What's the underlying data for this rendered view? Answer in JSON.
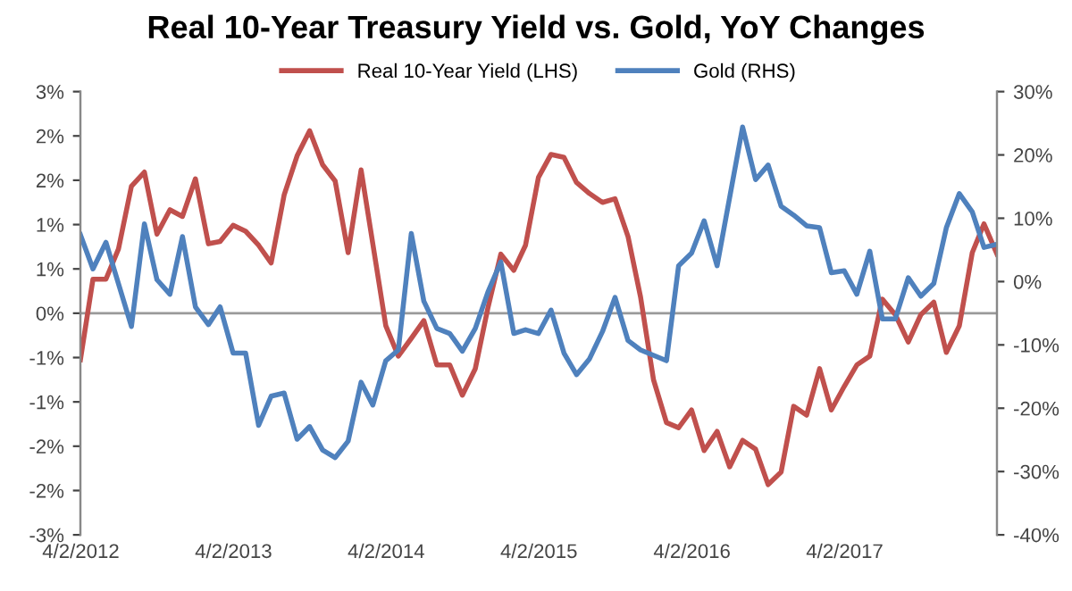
{
  "chart_data": {
    "type": "line",
    "title": "Real 10-Year Treasury Yield vs. Gold, YoY Changes",
    "series": [
      {
        "name": "Real 10-Year Yield (LHS)",
        "color": "#c0504d",
        "x": [
          "2012-04",
          "2012-05",
          "2012-06",
          "2012-07",
          "2012-08",
          "2012-09",
          "2012-10",
          "2012-11",
          "2012-12",
          "2013-01",
          "2013-02",
          "2013-03",
          "2013-04",
          "2013-05",
          "2013-06",
          "2013-07",
          "2013-08",
          "2013-09",
          "2013-10",
          "2013-11",
          "2013-12",
          "2014-01",
          "2014-02",
          "2014-03",
          "2014-04",
          "2014-05",
          "2014-06",
          "2014-07",
          "2014-08",
          "2014-09",
          "2014-10",
          "2014-11",
          "2014-12",
          "2015-01",
          "2015-02",
          "2015-03",
          "2015-04",
          "2015-05",
          "2015-06",
          "2015-07",
          "2015-08",
          "2015-09",
          "2015-10",
          "2015-11",
          "2015-12",
          "2016-01",
          "2016-02",
          "2016-03",
          "2016-04",
          "2016-05",
          "2016-06",
          "2016-07",
          "2016-08",
          "2016-09",
          "2016-10",
          "2016-11",
          "2016-12",
          "2017-01",
          "2017-02",
          "2017-03",
          "2017-04",
          "2017-05",
          "2017-06",
          "2017-07",
          "2017-08",
          "2017-09",
          "2017-10",
          "2017-11",
          "2017-12",
          "2018-01",
          "2018-02",
          "2018-03",
          "2018-04"
        ],
        "values": [
          -0.63,
          0.46,
          0.46,
          0.87,
          1.72,
          1.91,
          1.07,
          1.4,
          1.31,
          1.82,
          0.94,
          0.97,
          1.19,
          1.11,
          0.92,
          0.68,
          1.6,
          2.13,
          2.47,
          2.01,
          1.79,
          0.82,
          1.94,
          0.94,
          -0.17,
          -0.58,
          -0.34,
          -0.1,
          -0.7,
          -0.7,
          -1.11,
          -0.75,
          0.07,
          0.8,
          0.58,
          0.92,
          1.84,
          2.15,
          2.11,
          1.77,
          1.62,
          1.5,
          1.55,
          1.04,
          0.22,
          -0.9,
          -1.48,
          -1.55,
          -1.31,
          -1.86,
          -1.6,
          -2.08,
          -1.72,
          -1.84,
          -2.32,
          -2.15,
          -1.26,
          -1.38,
          -0.75,
          -1.31,
          -0.99,
          -0.7,
          -0.58,
          0.19,
          -0.02,
          -0.39,
          -0.02,
          0.15,
          -0.53,
          -0.17,
          0.82,
          1.21,
          0.8
        ]
      },
      {
        "name": "Gold (RHS)",
        "color": "#4f81bd",
        "axis": "y2",
        "x": [
          "2012-04",
          "2012-05",
          "2012-06",
          "2012-08",
          "2012-09",
          "2012-10",
          "2012-11",
          "2012-12",
          "2013-01",
          "2013-02",
          "2013-03",
          "2013-04",
          "2013-05",
          "2013-06",
          "2013-07",
          "2013-08",
          "2013-09",
          "2013-10",
          "2013-11",
          "2013-12",
          "2014-01",
          "2014-02",
          "2014-03",
          "2014-04",
          "2014-05",
          "2014-06",
          "2014-07",
          "2014-08",
          "2014-09",
          "2014-10",
          "2014-11",
          "2014-12",
          "2015-01",
          "2015-02",
          "2015-03",
          "2015-04",
          "2015-05",
          "2015-06",
          "2015-07",
          "2015-08",
          "2015-09",
          "2015-10",
          "2015-11",
          "2015-12",
          "2016-02",
          "2016-03",
          "2016-04",
          "2016-05",
          "2016-06",
          "2016-08",
          "2016-09",
          "2016-10",
          "2016-11",
          "2016-12",
          "2017-01",
          "2017-02",
          "2017-03",
          "2017-04",
          "2017-05",
          "2017-06",
          "2017-07",
          "2017-08",
          "2017-09",
          "2017-10",
          "2017-11",
          "2017-12",
          "2018-01",
          "2018-02",
          "2018-03",
          "2018-04"
        ],
        "values": [
          7.4,
          2.0,
          6.2,
          -7.1,
          9.1,
          0.3,
          -2.0,
          7.1,
          -4.0,
          -6.8,
          -4.0,
          -11.3,
          -11.3,
          -22.7,
          -18.1,
          -17.6,
          -24.9,
          -22.9,
          -26.6,
          -27.8,
          -25.2,
          -15.9,
          -19.5,
          -12.5,
          -10.8,
          7.6,
          -3.1,
          -7.4,
          -8.2,
          -11.0,
          -7.4,
          -1.7,
          3.1,
          -8.2,
          -7.6,
          -8.2,
          -4.5,
          -11.3,
          -14.7,
          -12.2,
          -7.9,
          -2.5,
          -9.3,
          -10.8,
          -12.5,
          2.5,
          4.5,
          9.6,
          2.5,
          24.4,
          16.1,
          18.4,
          11.9,
          10.5,
          8.8,
          8.5,
          1.4,
          1.7,
          -2.0,
          4.8,
          -5.9,
          -5.9,
          0.6,
          -2.3,
          -0.3,
          8.5,
          13.9,
          11.0,
          5.4,
          5.9
        ]
      }
    ],
    "xlim": [
      "2012-04",
      "2018-04"
    ],
    "xticks": [
      {
        "value": "2012-04-02",
        "label": "4/2/2012"
      },
      {
        "value": "2013-04-02",
        "label": "4/2/2013"
      },
      {
        "value": "2014-04-02",
        "label": "4/2/2014"
      },
      {
        "value": "2015-04-02",
        "label": "4/2/2015"
      },
      {
        "value": "2016-04-02",
        "label": "4/2/2016"
      },
      {
        "value": "2017-04-02",
        "label": "4/2/2017"
      }
    ],
    "ylim": [
      -3,
      3
    ],
    "yticks": [
      {
        "value": -3,
        "label": "-3%"
      },
      {
        "value": -2.4,
        "label": "-2%"
      },
      {
        "value": -1.8,
        "label": "-2%"
      },
      {
        "value": -1.2,
        "label": "-1%"
      },
      {
        "value": -0.6,
        "label": "-1%"
      },
      {
        "value": 0,
        "label": "0%"
      },
      {
        "value": 0.6,
        "label": "1%"
      },
      {
        "value": 1.2,
        "label": "1%"
      },
      {
        "value": 1.8,
        "label": "2%"
      },
      {
        "value": 2.4,
        "label": "2%"
      },
      {
        "value": 3,
        "label": "3%"
      }
    ],
    "y2lim": [
      -40,
      30
    ],
    "y2ticks": [
      {
        "value": -40,
        "label": "-40%"
      },
      {
        "value": -30,
        "label": "-30%"
      },
      {
        "value": -20,
        "label": "-20%"
      },
      {
        "value": -10,
        "label": "-10%"
      },
      {
        "value": 0,
        "label": "0%"
      },
      {
        "value": 10,
        "label": "10%"
      },
      {
        "value": 20,
        "label": "20%"
      },
      {
        "value": 30,
        "label": "30%"
      }
    ],
    "ref_lines": [
      {
        "axis": "y",
        "value": 0,
        "color": "#999999"
      }
    ],
    "legend": "top",
    "grid": false
  }
}
